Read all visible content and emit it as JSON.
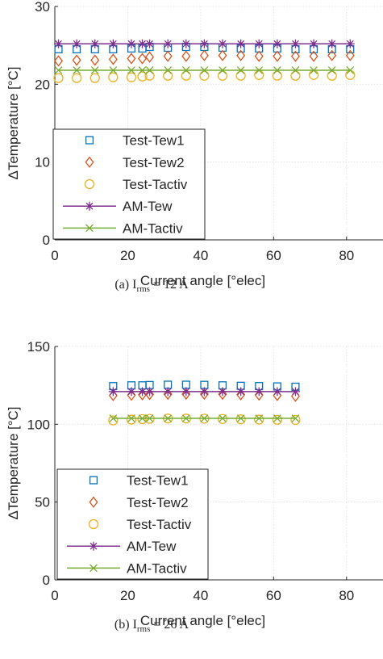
{
  "chart_data": [
    {
      "type": "scatter",
      "panel": "(a)",
      "caption": {
        "prefix": "(a) I",
        "sub": "rms",
        "suffix": " = 12 A"
      },
      "xlabel": "Current angle [°elec]",
      "ylabel": "ΔTemperature [°C]",
      "xlim": [
        0,
        90
      ],
      "ylim": [
        0,
        30
      ],
      "xticks": [
        0,
        20,
        40,
        60,
        80
      ],
      "yticks": [
        0,
        10,
        20,
        30
      ],
      "grid": true,
      "legend_position": "bottom-left",
      "x": [
        1,
        6,
        11,
        16,
        21,
        24,
        26,
        31,
        36,
        41,
        46,
        51,
        56,
        61,
        66,
        71,
        76,
        81
      ],
      "series": [
        {
          "name": "Test-Tew1",
          "marker": "square",
          "line": false,
          "color": "#0072BD",
          "values": [
            24.5,
            24.5,
            24.5,
            24.5,
            24.6,
            24.6,
            24.8,
            24.7,
            24.8,
            24.8,
            24.7,
            24.6,
            24.6,
            24.6,
            24.5,
            24.5,
            24.5,
            24.5
          ]
        },
        {
          "name": "Test-Tew2",
          "marker": "diamond",
          "line": false,
          "color": "#D95319",
          "values": [
            23.0,
            23.1,
            23.1,
            23.2,
            23.3,
            23.3,
            23.5,
            23.6,
            23.6,
            23.7,
            23.7,
            23.7,
            23.6,
            23.6,
            23.6,
            23.6,
            23.7,
            23.7
          ]
        },
        {
          "name": "Test-Tactiv",
          "marker": "circle",
          "line": false,
          "color": "#EDB120",
          "values": [
            20.8,
            20.8,
            20.8,
            20.9,
            20.9,
            21.0,
            21.1,
            21.1,
            21.1,
            21.1,
            21.1,
            21.1,
            21.2,
            21.1,
            21.1,
            21.2,
            21.1,
            21.2
          ]
        },
        {
          "name": "AM-Tew",
          "marker": "asterisk",
          "line": true,
          "color": "#7E2F8E",
          "values": [
            25.2,
            25.2,
            25.2,
            25.2,
            25.2,
            25.2,
            25.2,
            25.2,
            25.2,
            25.2,
            25.2,
            25.2,
            25.2,
            25.2,
            25.2,
            25.2,
            25.2,
            25.2
          ]
        },
        {
          "name": "AM-Tactiv",
          "marker": "x",
          "line": true,
          "color": "#77AC30",
          "values": [
            21.8,
            21.8,
            21.8,
            21.8,
            21.8,
            21.8,
            21.8,
            21.8,
            21.8,
            21.8,
            21.8,
            21.8,
            21.8,
            21.8,
            21.8,
            21.8,
            21.8,
            21.8
          ]
        }
      ]
    },
    {
      "type": "scatter",
      "panel": "(b)",
      "caption": {
        "prefix": "(b) I",
        "sub": "rms",
        "suffix": " = 26 A"
      },
      "xlabel": "Current angle [°elec]",
      "ylabel": "ΔTemperature [°C]",
      "xlim": [
        0,
        90
      ],
      "ylim": [
        0,
        150
      ],
      "xticks": [
        0,
        20,
        40,
        60,
        80
      ],
      "yticks": [
        0,
        50,
        100,
        150
      ],
      "grid": true,
      "legend_position": "bottom-left",
      "x": [
        16,
        21,
        24,
        26,
        31,
        36,
        41,
        46,
        51,
        56,
        61,
        66
      ],
      "series": [
        {
          "name": "Test-Tew1",
          "marker": "square",
          "line": false,
          "color": "#0072BD",
          "values": [
            124.5,
            125.0,
            125.0,
            125.2,
            125.4,
            125.4,
            125.3,
            125.0,
            124.7,
            124.5,
            124.3,
            124.1
          ]
        },
        {
          "name": "Test-Tew2",
          "marker": "diamond",
          "line": false,
          "color": "#D95319",
          "values": [
            118.5,
            118.7,
            119.0,
            119.2,
            119.3,
            119.4,
            119.4,
            119.3,
            119.0,
            118.8,
            118.5,
            118.0
          ]
        },
        {
          "name": "Test-Tactiv",
          "marker": "circle",
          "line": false,
          "color": "#EDB120",
          "values": [
            102.5,
            103.0,
            103.3,
            103.5,
            103.7,
            103.7,
            103.6,
            103.4,
            103.2,
            103.0,
            102.9,
            102.8
          ]
        },
        {
          "name": "AM-Tew",
          "marker": "asterisk",
          "line": true,
          "color": "#7E2F8E",
          "values": [
            121.0,
            121.0,
            121.0,
            121.0,
            121.0,
            121.0,
            121.0,
            121.0,
            121.0,
            121.0,
            121.0,
            121.0
          ]
        },
        {
          "name": "AM-Tactiv",
          "marker": "x",
          "line": true,
          "color": "#77AC30",
          "values": [
            103.8,
            103.8,
            103.8,
            103.8,
            103.8,
            103.8,
            103.8,
            103.8,
            103.8,
            103.8,
            103.8,
            103.8
          ]
        }
      ]
    }
  ]
}
